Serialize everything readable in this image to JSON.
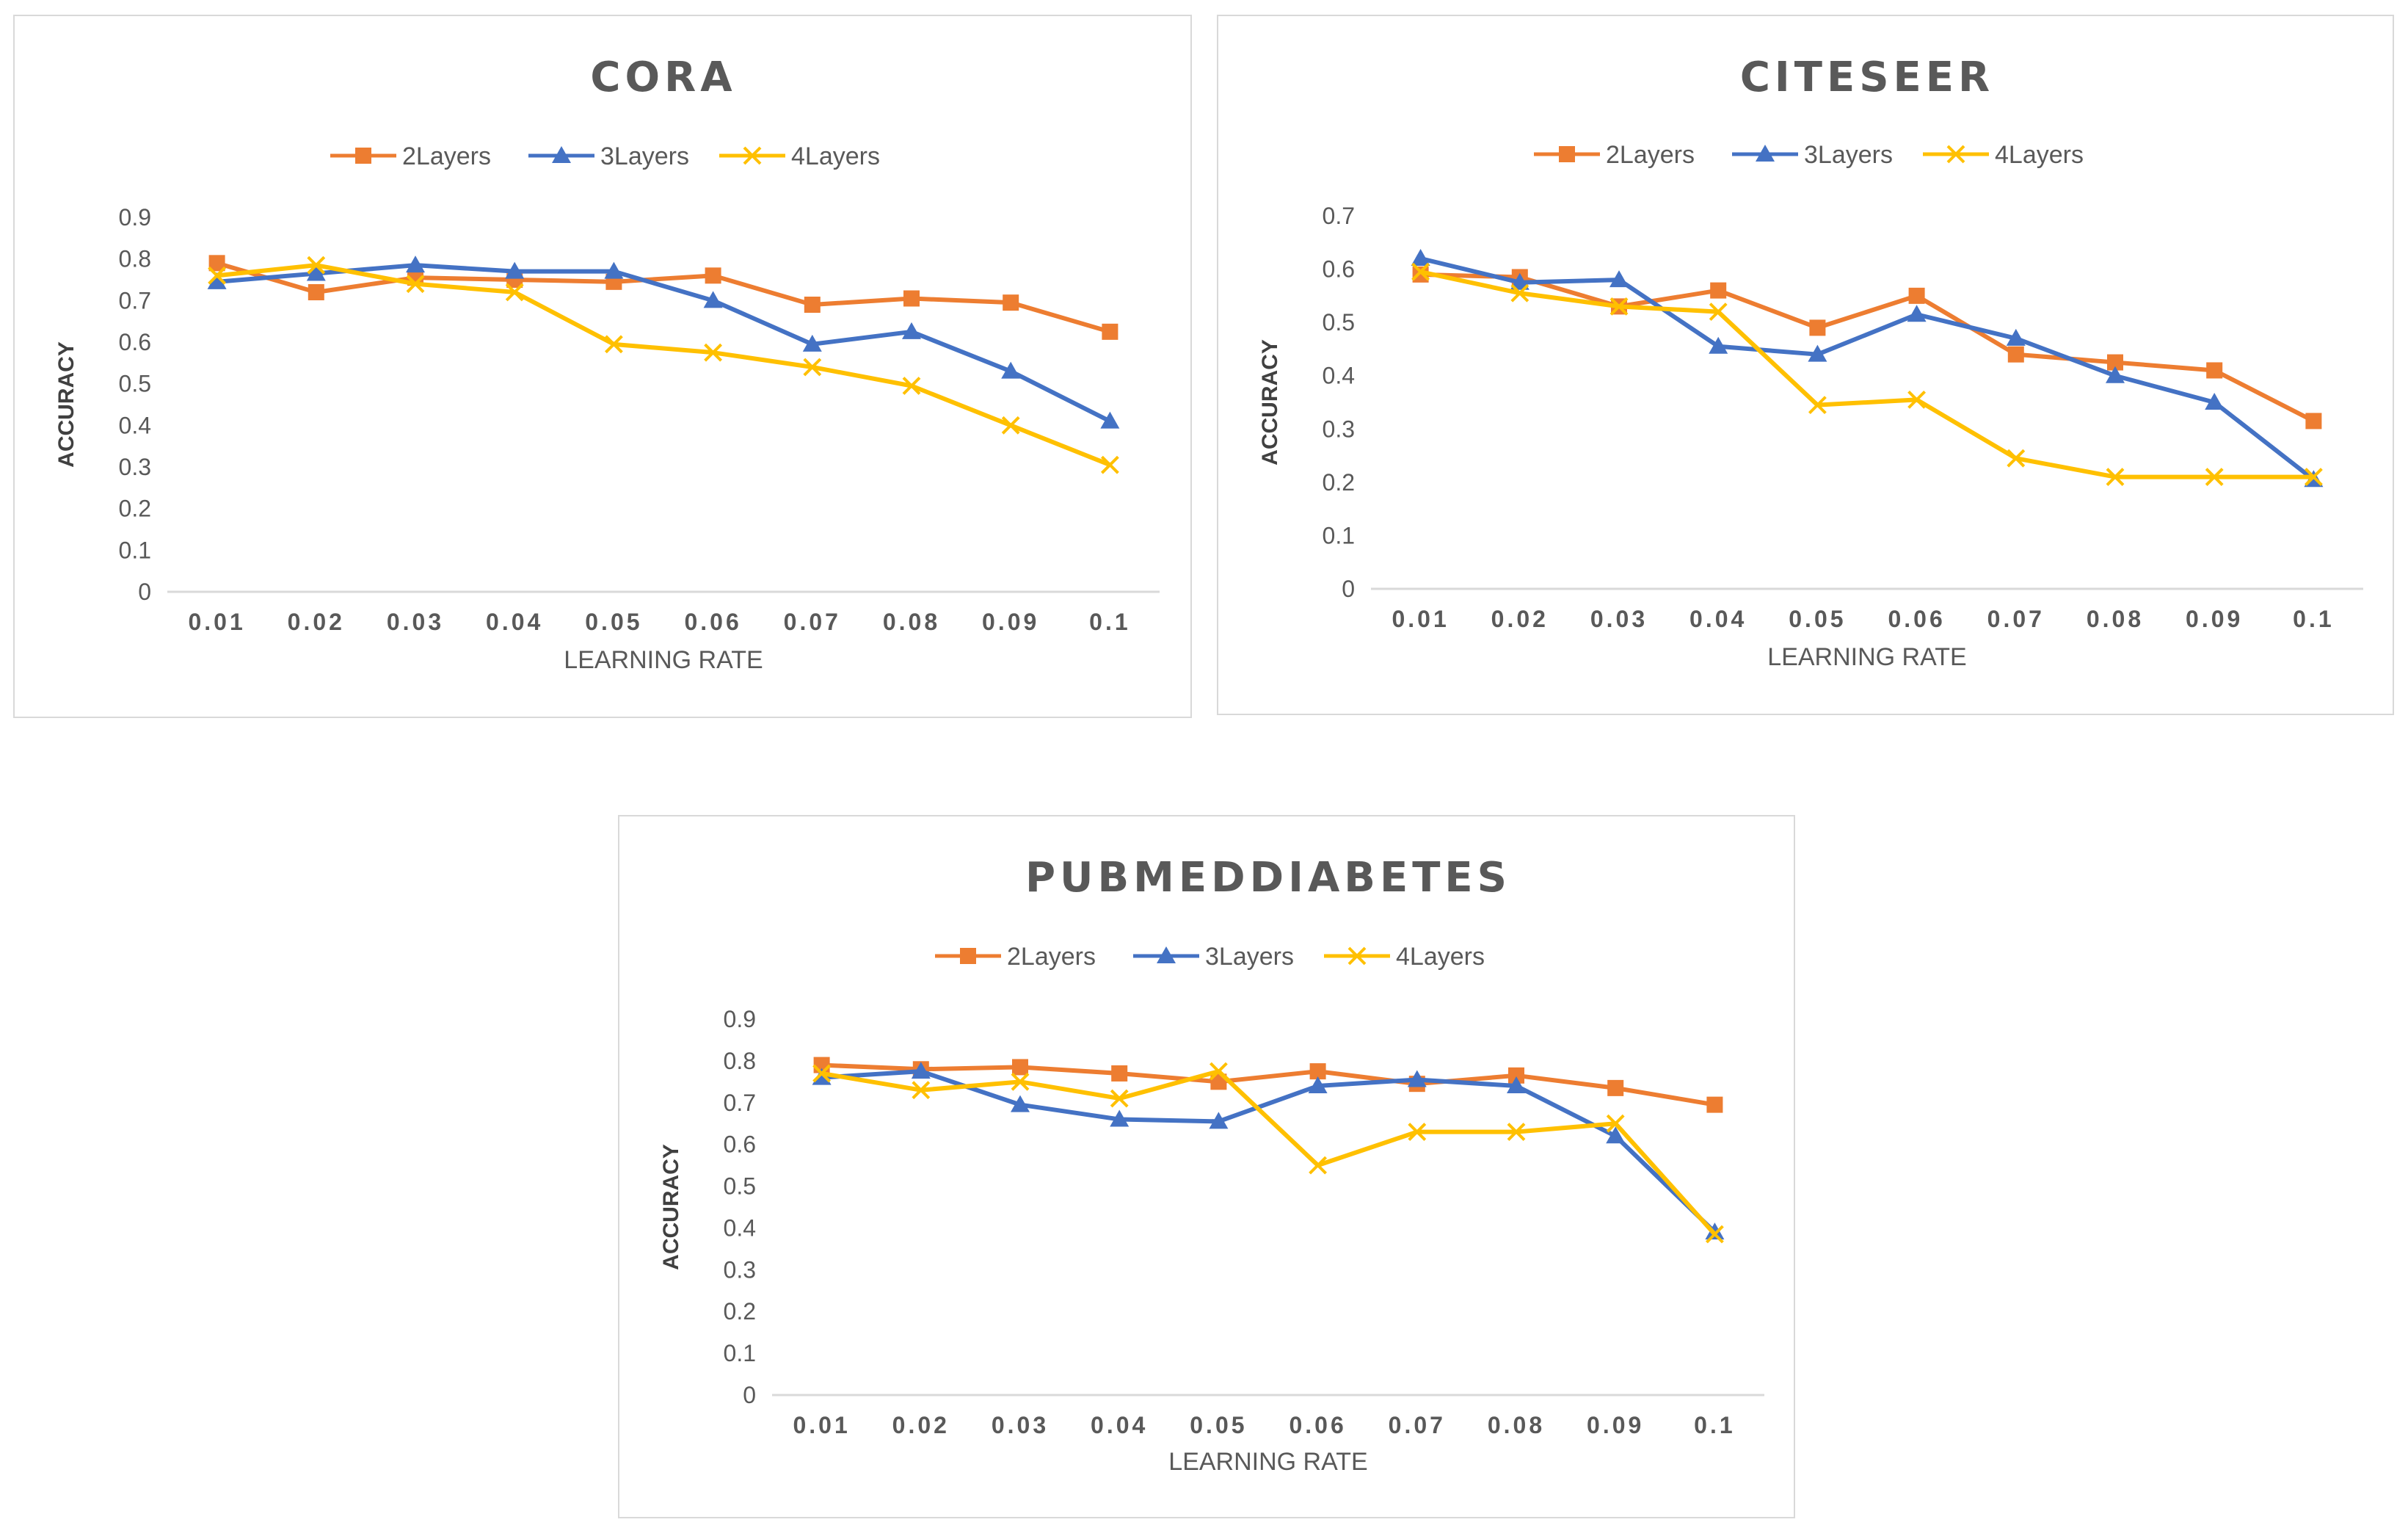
{
  "chart_data": [
    {
      "type": "line",
      "title": "CORA",
      "xlabel": "LEARNING RATE",
      "ylabel": "ACCURACY",
      "categories": [
        "0.01",
        "0.02",
        "0.03",
        "0.04",
        "0.05",
        "0.06",
        "0.07",
        "0.08",
        "0.09",
        "0.1"
      ],
      "yticks": [
        "0",
        "0.1",
        "0.2",
        "0.3",
        "0.4",
        "0.5",
        "0.6",
        "0.7",
        "0.8",
        "0.9"
      ],
      "ylim": [
        0,
        0.9
      ],
      "legend_position": "top",
      "grid": false,
      "series": [
        {
          "name": "2Layers",
          "color": "#ED7D31",
          "marker": "square",
          "values": [
            0.79,
            0.72,
            0.755,
            0.75,
            0.745,
            0.76,
            0.69,
            0.705,
            0.695,
            0.625
          ]
        },
        {
          "name": "3Layers",
          "color": "#4472C4",
          "marker": "triangle",
          "values": [
            0.745,
            0.765,
            0.785,
            0.77,
            0.77,
            0.7,
            0.595,
            0.625,
            0.53,
            0.41
          ]
        },
        {
          "name": "4Layers",
          "color": "#FFC000",
          "marker": "x",
          "values": [
            0.76,
            0.785,
            0.74,
            0.72,
            0.595,
            0.575,
            0.54,
            0.495,
            0.4,
            0.305
          ]
        }
      ]
    },
    {
      "type": "line",
      "title": "CITESEER",
      "xlabel": "LEARNING RATE",
      "ylabel": "ACCURACY",
      "categories": [
        "0.01",
        "0.02",
        "0.03",
        "0.04",
        "0.05",
        "0.06",
        "0.07",
        "0.08",
        "0.09",
        "0.1"
      ],
      "yticks": [
        "0",
        "0.1",
        "0.2",
        "0.3",
        "0.4",
        "0.5",
        "0.6",
        "0.7"
      ],
      "ylim": [
        0,
        0.7
      ],
      "legend_position": "top",
      "grid": false,
      "series": [
        {
          "name": "2Layers",
          "color": "#ED7D31",
          "marker": "square",
          "values": [
            0.59,
            0.585,
            0.53,
            0.56,
            0.49,
            0.55,
            0.44,
            0.425,
            0.41,
            0.315
          ]
        },
        {
          "name": "3Layers",
          "color": "#4472C4",
          "marker": "triangle",
          "values": [
            0.62,
            0.575,
            0.58,
            0.455,
            0.44,
            0.515,
            0.47,
            0.4,
            0.35,
            0.205
          ]
        },
        {
          "name": "4Layers",
          "color": "#FFC000",
          "marker": "x",
          "values": [
            0.595,
            0.555,
            0.53,
            0.52,
            0.345,
            0.355,
            0.245,
            0.21,
            0.21,
            0.21
          ]
        }
      ]
    },
    {
      "type": "line",
      "title": "PUBMEDDIABETES",
      "xlabel": "LEARNING RATE",
      "ylabel": "ACCURACY",
      "categories": [
        "0.01",
        "0.02",
        "0.03",
        "0.04",
        "0.05",
        "0.06",
        "0.07",
        "0.08",
        "0.09",
        "0.1"
      ],
      "yticks": [
        "0",
        "0.1",
        "0.2",
        "0.3",
        "0.4",
        "0.5",
        "0.6",
        "0.7",
        "0.8",
        "0.9"
      ],
      "ylim": [
        0,
        0.9
      ],
      "legend_position": "top",
      "grid": false,
      "series": [
        {
          "name": "2Layers",
          "color": "#ED7D31",
          "marker": "square",
          "values": [
            0.79,
            0.78,
            0.785,
            0.77,
            0.75,
            0.775,
            0.745,
            0.765,
            0.735,
            0.695
          ]
        },
        {
          "name": "3Layers",
          "color": "#4472C4",
          "marker": "triangle",
          "values": [
            0.76,
            0.775,
            0.695,
            0.66,
            0.655,
            0.74,
            0.755,
            0.74,
            0.62,
            0.39
          ]
        },
        {
          "name": "4Layers",
          "color": "#FFC000",
          "marker": "x",
          "values": [
            0.77,
            0.73,
            0.75,
            0.71,
            0.775,
            0.55,
            0.63,
            0.63,
            0.65,
            0.385
          ]
        }
      ]
    }
  ]
}
